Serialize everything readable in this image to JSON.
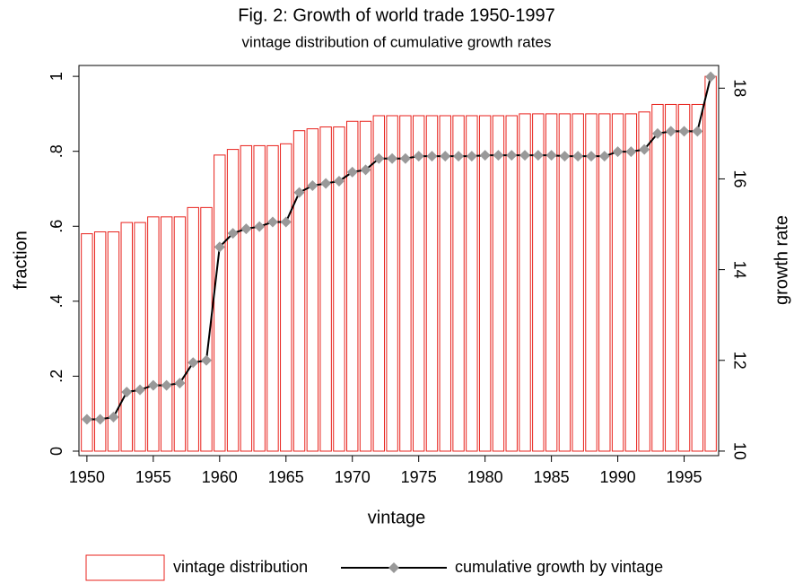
{
  "chart_data": {
    "type": "bar",
    "title": "Fig. 2: Growth of world trade 1950-1997",
    "subtitle": "vintage distribution of cumulative growth rates",
    "x_label": "vintage",
    "y_label": "fraction",
    "y2_label": "growth rate",
    "x": [
      1950,
      1951,
      1952,
      1953,
      1954,
      1955,
      1956,
      1957,
      1958,
      1959,
      1960,
      1961,
      1962,
      1963,
      1964,
      1965,
      1966,
      1967,
      1968,
      1969,
      1970,
      1971,
      1972,
      1973,
      1974,
      1975,
      1976,
      1977,
      1978,
      1979,
      1980,
      1981,
      1982,
      1983,
      1984,
      1985,
      1986,
      1987,
      1988,
      1989,
      1990,
      1991,
      1992,
      1993,
      1994,
      1995,
      1996,
      1997
    ],
    "series": [
      {
        "name": "vintage distribution",
        "type": "bar",
        "color": "#e8211b",
        "axis": "y",
        "values": [
          0.58,
          0.585,
          0.585,
          0.61,
          0.61,
          0.625,
          0.625,
          0.625,
          0.65,
          0.65,
          0.79,
          0.805,
          0.815,
          0.815,
          0.815,
          0.82,
          0.855,
          0.86,
          0.865,
          0.865,
          0.88,
          0.88,
          0.895,
          0.895,
          0.895,
          0.895,
          0.895,
          0.895,
          0.895,
          0.895,
          0.895,
          0.895,
          0.895,
          0.9,
          0.9,
          0.9,
          0.9,
          0.9,
          0.9,
          0.9,
          0.9,
          0.9,
          0.905,
          0.925,
          0.925,
          0.925,
          0.925,
          1.0
        ]
      },
      {
        "name": "cumulative growth by vintage",
        "type": "line",
        "color": "#000000",
        "marker_color": "#999999",
        "axis": "y2",
        "values": [
          10.7,
          10.7,
          10.75,
          11.3,
          11.35,
          11.45,
          11.45,
          11.5,
          11.95,
          12.0,
          14.5,
          14.8,
          14.9,
          14.95,
          15.05,
          15.05,
          15.7,
          15.85,
          15.9,
          15.95,
          16.15,
          16.2,
          16.45,
          16.45,
          16.45,
          16.5,
          16.5,
          16.5,
          16.5,
          16.5,
          16.52,
          16.52,
          16.52,
          16.52,
          16.52,
          16.52,
          16.5,
          16.5,
          16.5,
          16.5,
          16.6,
          16.6,
          16.65,
          17.0,
          17.05,
          17.05,
          17.05,
          18.25
        ]
      }
    ],
    "xlim": [
      1949.4,
      1997.6
    ],
    "xticks": [
      1950,
      1955,
      1960,
      1965,
      1970,
      1975,
      1980,
      1985,
      1990,
      1995
    ],
    "ylim": [
      -0.012,
      1.029
    ],
    "yticks": [
      0,
      {
        "value": 0.2,
        "label": ".2"
      },
      {
        "value": 0.4,
        "label": ".4"
      },
      {
        "value": 0.6,
        "label": ".6"
      },
      {
        "value": 0.8,
        "label": ".8"
      },
      1
    ],
    "y2lim": [
      9.9,
      18.5
    ],
    "y2ticks": [
      10,
      12,
      14,
      16,
      18
    ],
    "legend": "bottom"
  }
}
